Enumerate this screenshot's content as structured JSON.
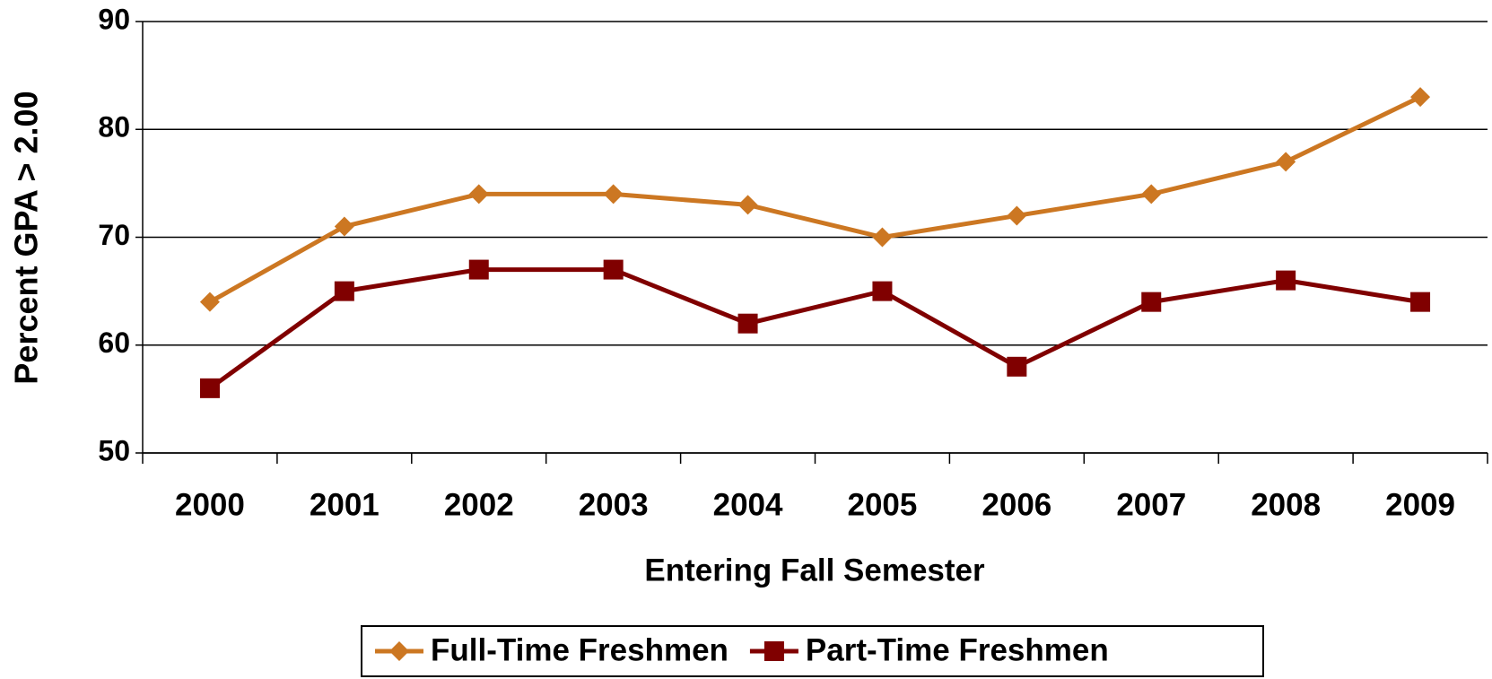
{
  "chart_data": {
    "type": "line",
    "y_label": "Percent GPA > 2.00",
    "x_label": "Entering Fall Semester",
    "categories": [
      "2000",
      "2001",
      "2002",
      "2003",
      "2004",
      "2005",
      "2006",
      "2007",
      "2008",
      "2009"
    ],
    "series": [
      {
        "name": "Full-Time Freshmen",
        "color": "#cc7722",
        "marker": "diamond",
        "values": [
          64,
          71,
          74,
          74,
          73,
          70,
          72,
          74,
          77,
          83
        ]
      },
      {
        "name": "Part-Time Freshmen",
        "color": "#800000",
        "marker": "square",
        "values": [
          56,
          65,
          67,
          67,
          62,
          65,
          58,
          64,
          66,
          64
        ]
      }
    ],
    "ylim": [
      50,
      90
    ],
    "yticks": [
      50,
      60,
      70,
      80,
      90
    ],
    "grid": true,
    "legend": "bottom"
  }
}
